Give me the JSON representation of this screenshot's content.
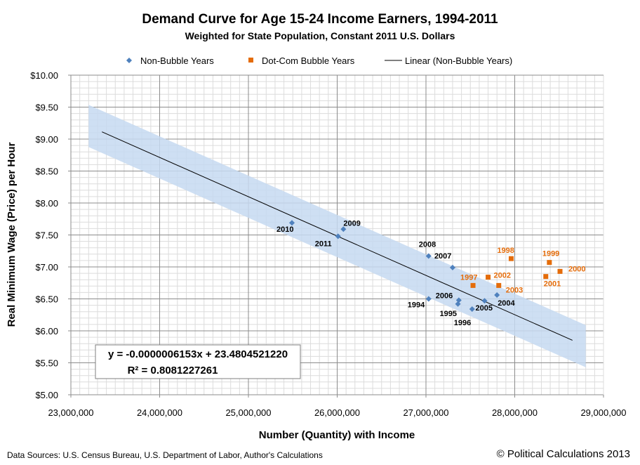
{
  "chart_data": {
    "type": "scatter",
    "title": "Demand Curve for Age 15-24 Income Earners, 1994-2011",
    "subtitle": "Weighted for State Population, Constant 2011 U.S. Dollars",
    "xlabel": "Number (Quantity) with Income",
    "ylabel": "Real Minimum Wage (Price) per Hour",
    "xlim": [
      23000000,
      29000000
    ],
    "ylim": [
      5.0,
      10.0
    ],
    "x_ticks": [
      "23,000,000",
      "24,000,000",
      "25,000,000",
      "26,000,000",
      "27,000,000",
      "28,000,000",
      "29,000,000"
    ],
    "y_ticks": [
      "$5.00",
      "$5.50",
      "$6.00",
      "$6.50",
      "$7.00",
      "$7.50",
      "$8.00",
      "$8.50",
      "$9.00",
      "$9.50",
      "$10.00"
    ],
    "grid": "on (major and minor)",
    "legend_position": "top",
    "series": [
      {
        "name": "Non-Bubble Years",
        "color": "#4f81bd",
        "marker": "diamond",
        "points": [
          {
            "label": "1994",
            "x": 27030000,
            "y": 6.5
          },
          {
            "label": "1995",
            "x": 27360000,
            "y": 6.42
          },
          {
            "label": "1996",
            "x": 27520000,
            "y": 6.34
          },
          {
            "label": "2004",
            "x": 27800000,
            "y": 6.56
          },
          {
            "label": "2005",
            "x": 27660000,
            "y": 6.47
          },
          {
            "label": "2006",
            "x": 27370000,
            "y": 6.48
          },
          {
            "label": "2007",
            "x": 27300000,
            "y": 6.99
          },
          {
            "label": "2008",
            "x": 27030000,
            "y": 7.17
          },
          {
            "label": "2009",
            "x": 26070000,
            "y": 7.59
          },
          {
            "label": "2010",
            "x": 25490000,
            "y": 7.69
          },
          {
            "label": "2011",
            "x": 26010000,
            "y": 7.48
          }
        ]
      },
      {
        "name": "Dot-Com Bubble Years",
        "color": "#e46c0a",
        "marker": "square",
        "points": [
          {
            "label": "1997",
            "x": 27530000,
            "y": 6.71
          },
          {
            "label": "1998",
            "x": 27960000,
            "y": 7.13
          },
          {
            "label": "1999",
            "x": 28390000,
            "y": 7.07
          },
          {
            "label": "2000",
            "x": 28510000,
            "y": 6.93
          },
          {
            "label": "2001",
            "x": 28350000,
            "y": 6.85
          },
          {
            "label": "2002",
            "x": 27700000,
            "y": 6.84
          },
          {
            "label": "2003",
            "x": 27820000,
            "y": 6.71
          }
        ]
      }
    ],
    "trendline": {
      "name": "Linear (Non-Bubble Years)",
      "color": "#000000",
      "slope": -6.153e-07,
      "intercept": 23.480452122,
      "x_range": [
        23350000,
        28650000
      ],
      "band_color": "#c6d9f1",
      "band_halfwidth": 0.33
    },
    "equation_lines": [
      "y = -0.0000006153x + 23.4804521220",
      "R² = 0.8081227261"
    ]
  },
  "footer": {
    "sources": "Data Sources: U.S. Census Bureau, U.S. Department of Labor, Author's Calculations",
    "copyright": "© Political Calculations 2013"
  }
}
